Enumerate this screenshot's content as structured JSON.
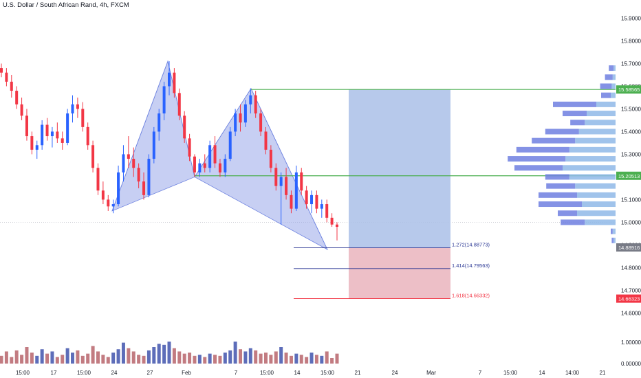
{
  "header": {
    "title": "U.S. Dollar / South African Rand, 4h, FXCM"
  },
  "colors": {
    "up": "#2962ff",
    "down": "#f23645",
    "volUp": "#3449a8",
    "volDown": "#b35a62",
    "pattern": "#8f9fe8",
    "target": "#aac0e8",
    "stop": "#eab4bd",
    "green": "#4caf50"
  },
  "chart_data": {
    "type": "candlestick",
    "title": "U.S. Dollar / South African Rand, 4h, FXCM",
    "ylim": [
      14.58,
      15.95
    ],
    "y_ticks": [
      "15.90000",
      "15.80000",
      "15.70000",
      "15.60000",
      "15.50000",
      "15.40000",
      "15.30000",
      "15.20000",
      "15.10000",
      "15.00000",
      "14.90000",
      "14.80000",
      "14.70000",
      "14.60000"
    ],
    "x_ticks": [
      "15:00",
      "17",
      "15:00",
      "24",
      "27",
      "Feb",
      "7",
      "15:00",
      "14",
      "15:00",
      "21",
      "24",
      "Mar",
      "7",
      "15:00",
      "14",
      "14:00",
      "21"
    ],
    "volume_ticks": [
      "1.00000",
      "0.00000"
    ],
    "candles": [
      [
        15.68,
        15.7,
        15.64,
        15.66
      ],
      [
        15.66,
        15.68,
        15.6,
        15.62
      ],
      [
        15.62,
        15.65,
        15.55,
        15.58
      ],
      [
        15.58,
        15.6,
        15.5,
        15.52
      ],
      [
        15.52,
        15.55,
        15.45,
        15.47
      ],
      [
        15.47,
        15.5,
        15.36,
        15.38
      ],
      [
        15.38,
        15.4,
        15.3,
        15.32
      ],
      [
        15.32,
        15.36,
        15.28,
        15.34
      ],
      [
        15.34,
        15.45,
        15.32,
        15.43
      ],
      [
        15.43,
        15.46,
        15.36,
        15.38
      ],
      [
        15.38,
        15.42,
        15.33,
        15.4
      ],
      [
        15.4,
        15.44,
        15.35,
        15.37
      ],
      [
        15.37,
        15.4,
        15.32,
        15.35
      ],
      [
        15.35,
        15.5,
        15.34,
        15.48
      ],
      [
        15.48,
        15.56,
        15.44,
        15.52
      ],
      [
        15.52,
        15.55,
        15.46,
        15.5
      ],
      [
        15.5,
        15.53,
        15.4,
        15.42
      ],
      [
        15.42,
        15.44,
        15.32,
        15.34
      ],
      [
        15.34,
        15.36,
        15.22,
        15.24
      ],
      [
        15.24,
        15.26,
        15.12,
        15.14
      ],
      [
        15.14,
        15.18,
        15.08,
        15.1
      ],
      [
        15.1,
        15.12,
        15.05,
        15.07
      ],
      [
        15.07,
        15.1,
        15.04,
        15.08
      ],
      [
        15.08,
        15.25,
        15.07,
        15.22
      ],
      [
        15.22,
        15.34,
        15.18,
        15.3
      ],
      [
        15.3,
        15.38,
        15.24,
        15.28
      ],
      [
        15.28,
        15.33,
        15.2,
        15.24
      ],
      [
        15.24,
        15.26,
        15.15,
        15.18
      ],
      [
        15.18,
        15.22,
        15.1,
        15.12
      ],
      [
        15.12,
        15.3,
        15.11,
        15.28
      ],
      [
        15.28,
        15.42,
        15.26,
        15.4
      ],
      [
        15.4,
        15.5,
        15.36,
        15.48
      ],
      [
        15.48,
        15.62,
        15.45,
        15.6
      ],
      [
        15.6,
        15.71,
        15.56,
        15.66
      ],
      [
        15.66,
        15.68,
        15.55,
        15.57
      ],
      [
        15.57,
        15.59,
        15.45,
        15.47
      ],
      [
        15.47,
        15.49,
        15.35,
        15.37
      ],
      [
        15.37,
        15.39,
        15.27,
        15.29
      ],
      [
        15.29,
        15.3,
        15.2,
        15.22
      ],
      [
        15.22,
        15.28,
        15.2,
        15.26
      ],
      [
        15.26,
        15.3,
        15.22,
        15.24
      ],
      [
        15.24,
        15.36,
        15.22,
        15.34
      ],
      [
        15.34,
        15.38,
        15.24,
        15.26
      ],
      [
        15.26,
        15.28,
        15.2,
        15.22
      ],
      [
        15.22,
        15.3,
        15.2,
        15.28
      ],
      [
        15.28,
        15.42,
        15.27,
        15.4
      ],
      [
        15.4,
        15.5,
        15.38,
        15.48
      ],
      [
        15.48,
        15.52,
        15.4,
        15.44
      ],
      [
        15.44,
        15.54,
        15.42,
        15.52
      ],
      [
        15.52,
        15.59,
        15.48,
        15.56
      ],
      [
        15.56,
        15.58,
        15.46,
        15.48
      ],
      [
        15.48,
        15.5,
        15.38,
        15.4
      ],
      [
        15.4,
        15.42,
        15.3,
        15.32
      ],
      [
        15.32,
        15.34,
        15.22,
        15.24
      ],
      [
        15.24,
        15.26,
        15.14,
        15.16
      ],
      [
        15.16,
        15.22,
        14.99,
        15.2
      ],
      [
        15.2,
        15.24,
        15.1,
        15.12
      ],
      [
        15.12,
        15.14,
        15.04,
        15.06
      ],
      [
        15.06,
        15.25,
        15.05,
        15.22
      ],
      [
        15.22,
        15.24,
        15.12,
        15.14
      ],
      [
        15.14,
        15.16,
        15.06,
        15.08
      ],
      [
        15.08,
        15.14,
        15.04,
        15.12
      ],
      [
        15.12,
        15.14,
        15.04,
        15.06
      ],
      [
        15.06,
        15.1,
        15.02,
        15.08
      ],
      [
        15.08,
        15.1,
        15.0,
        15.02
      ],
      [
        15.02,
        15.04,
        14.98,
        14.99
      ],
      [
        14.99,
        15.0,
        14.92,
        14.98
      ]
    ],
    "volumes": [
      0.35,
      0.55,
      0.3,
      0.6,
      0.4,
      0.75,
      0.5,
      0.35,
      0.65,
      0.45,
      0.55,
      0.3,
      0.4,
      0.7,
      0.5,
      0.6,
      0.35,
      0.45,
      0.8,
      0.55,
      0.4,
      0.3,
      0.5,
      0.65,
      0.95,
      0.7,
      0.55,
      0.4,
      0.35,
      0.6,
      0.75,
      0.9,
      0.85,
      1.0,
      0.7,
      0.55,
      0.45,
      0.5,
      0.35,
      0.4,
      0.3,
      0.45,
      0.4,
      0.35,
      0.5,
      0.6,
      1.0,
      0.65,
      0.55,
      0.7,
      0.6,
      0.45,
      0.5,
      0.4,
      0.55,
      0.75,
      0.5,
      0.35,
      0.45,
      0.4,
      0.3,
      0.5,
      0.4,
      0.35,
      0.55,
      0.25,
      0.45
    ],
    "harmonic_pattern": {
      "points": [
        [
          15.05,
          "start"
        ],
        [
          15.71,
          "peak"
        ],
        [
          15.2,
          "low"
        ],
        [
          15.59,
          "peak"
        ],
        [
          14.88,
          "end"
        ]
      ]
    },
    "fib_levels": [
      {
        "label": "1.272(14.88773)",
        "value": 14.88773
      },
      {
        "label": "1.414(14.79563)",
        "value": 14.79563
      },
      {
        "label": "1.618(14.66332)",
        "value": 14.66332
      }
    ],
    "horizontal_lines": [
      15.58565,
      15.20513
    ],
    "price_tags": [
      {
        "label": "15.58565",
        "value": 15.58565,
        "kind": "green"
      },
      {
        "label": "15.20513",
        "value": 15.20513,
        "kind": "green"
      },
      {
        "label": "14.88916",
        "value": 14.88916,
        "kind": "gray"
      },
      {
        "label": "14.66323",
        "value": 14.66323,
        "kind": "red"
      }
    ],
    "volume_profile": [
      [
        15.68,
        0.05,
        0.02
      ],
      [
        15.64,
        0.08,
        0.03
      ],
      [
        15.6,
        0.12,
        0.04
      ],
      [
        15.56,
        0.1,
        0.05
      ],
      [
        15.52,
        0.45,
        0.2
      ],
      [
        15.48,
        0.25,
        0.3
      ],
      [
        15.44,
        0.15,
        0.32
      ],
      [
        15.4,
        0.35,
        0.38
      ],
      [
        15.36,
        0.45,
        0.42
      ],
      [
        15.32,
        0.55,
        0.48
      ],
      [
        15.28,
        0.6,
        0.52
      ],
      [
        15.24,
        0.5,
        0.55
      ],
      [
        15.2,
        0.25,
        0.48
      ],
      [
        15.16,
        0.3,
        0.42
      ],
      [
        15.12,
        0.4,
        0.4
      ],
      [
        15.08,
        0.45,
        0.35
      ],
      [
        15.04,
        0.2,
        0.4
      ],
      [
        15.0,
        0.25,
        0.32
      ],
      [
        14.96,
        0.02,
        0.03
      ],
      [
        14.92,
        0.02,
        0.02
      ]
    ]
  }
}
